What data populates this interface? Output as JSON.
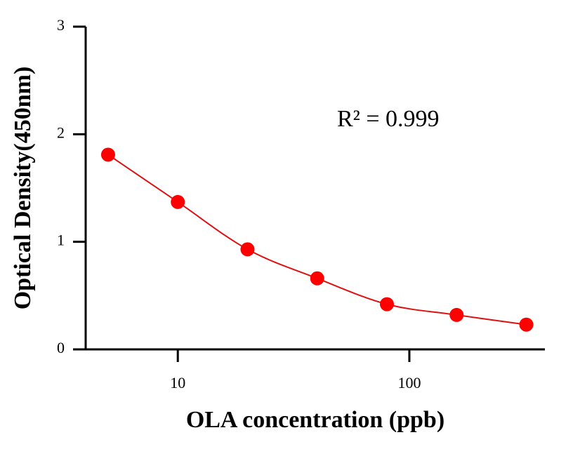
{
  "chart_data": {
    "type": "scatter",
    "x_label": "OLA concentration (ppb)",
    "y_label": "Optical Density(450nm)",
    "annotation": "R² = 0.999",
    "x": [
      5,
      10,
      20,
      40,
      80,
      160,
      320
    ],
    "series": [
      {
        "color": "#ff0000",
        "line_color": "#dd1111",
        "values": [
          1.81,
          1.37,
          0.93,
          0.66,
          0.42,
          0.32,
          0.23
        ]
      }
    ],
    "x_log": true,
    "xlim": [
      4,
      385
    ],
    "xticks": [
      10,
      100
    ],
    "ylim": [
      0,
      3
    ],
    "yticks": [
      0,
      1,
      2,
      3
    ],
    "grid": false
  }
}
